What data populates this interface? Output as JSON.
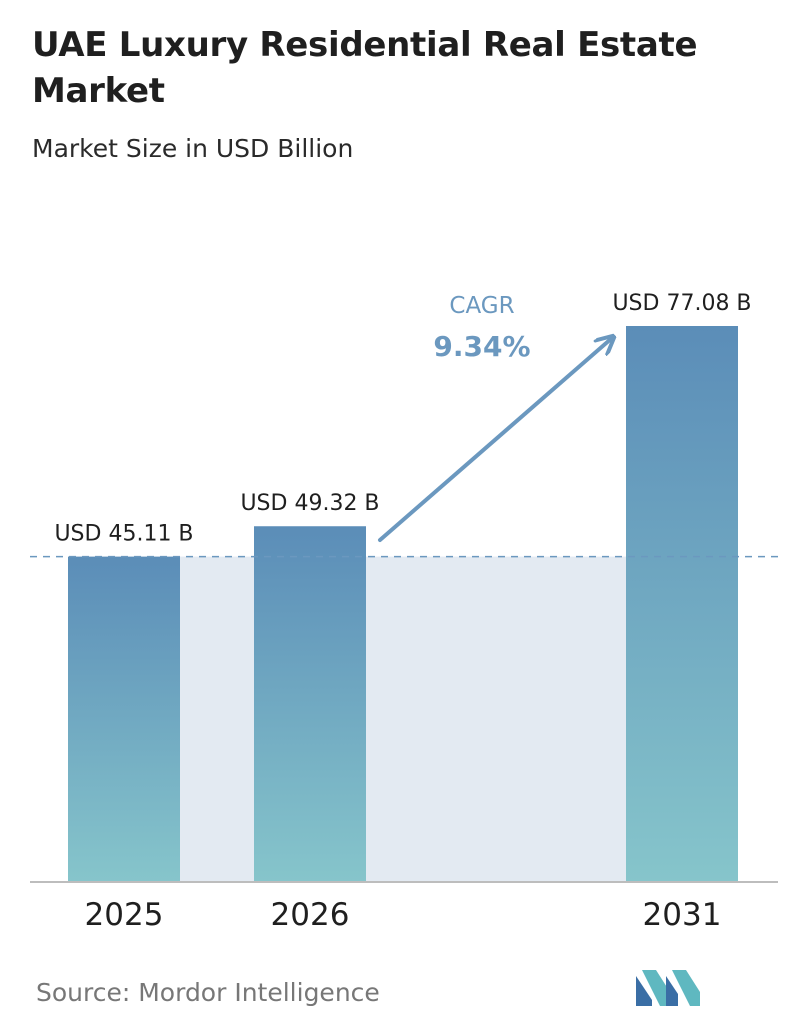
{
  "header": {
    "title": "UAE Luxury Residential Real Estate Market",
    "subtitle": "Market Size in USD Billion"
  },
  "chart_data": {
    "type": "bar",
    "title": "UAE Luxury Residential Real Estate Market",
    "subtitle": "Market Size in USD Billion",
    "categories": [
      "2025",
      "2026",
      "2031"
    ],
    "values": [
      45.11,
      49.32,
      77.08
    ],
    "value_labels": [
      "USD 45.11 B",
      "USD 49.32 B",
      "USD 77.08 B"
    ],
    "ylim": [
      0,
      77.08
    ],
    "y_axis_shown": false,
    "grid": false,
    "reference_line": {
      "value": 45.11,
      "style": "dashed"
    },
    "annotation": {
      "label": "CAGR",
      "value": "9.34%"
    },
    "colors": {
      "bar_top": "#5b8db8",
      "bar_bottom": "#86c5cb",
      "band": "#e3eaf2",
      "arrow": "#6b98bf",
      "cagr_label": "#6b98bf",
      "axis": "#bdbdbd"
    }
  },
  "footer": {
    "source": "Source:  Mordor Intelligence",
    "logo_icon": "mordor-intelligence-logo-icon"
  }
}
